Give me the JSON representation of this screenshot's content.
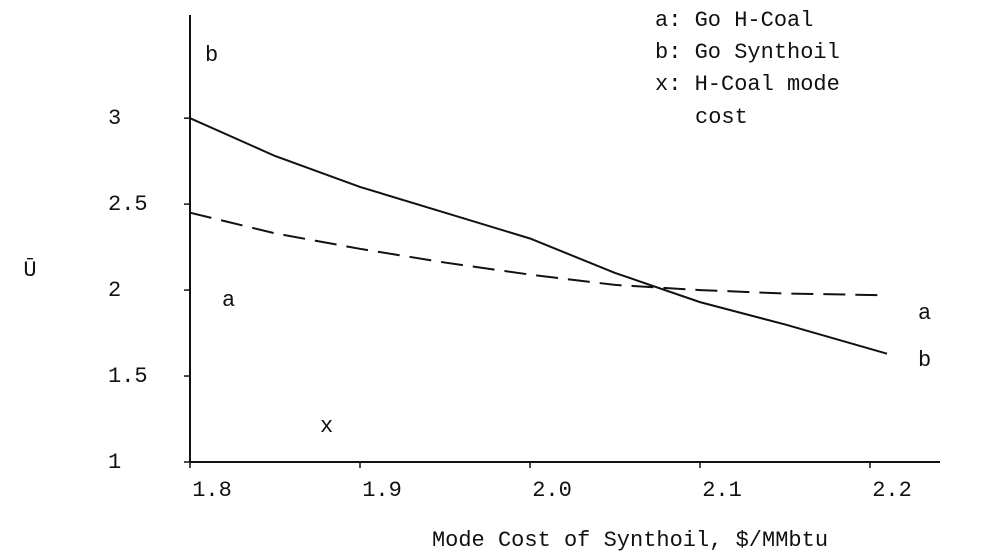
{
  "chart_data": {
    "type": "line",
    "x_label": "Mode Cost of Synthoil, $/MMbtu",
    "y_label": "Ū",
    "x": [
      1.8,
      1.85,
      1.9,
      1.95,
      2.0,
      2.05,
      2.1,
      2.15,
      2.21
    ],
    "series": [
      {
        "name": "a",
        "color": "#111111",
        "dashed": true,
        "values": [
          2.45,
          2.33,
          2.24,
          2.16,
          2.09,
          2.03,
          2.0,
          1.98,
          1.97
        ]
      },
      {
        "name": "b",
        "color": "#111111",
        "dashed": false,
        "values": [
          3.0,
          2.78,
          2.6,
          2.45,
          2.3,
          2.1,
          1.93,
          1.8,
          1.63
        ]
      }
    ],
    "xlim": [
      1.8,
      2.22
    ],
    "ylim": [
      1,
      3.6
    ],
    "xticks": [
      1.8,
      1.9,
      {
        "value": 2,
        "label": "2.0"
      },
      2.1,
      2.2
    ],
    "yticks": [
      1,
      1.5,
      2,
      2.5,
      3
    ],
    "legend": [
      "a: Go H-Coal",
      "b: Go Synthoil",
      "x: H-Coal mode",
      "cost"
    ],
    "annotations": [
      "b",
      "a",
      "x",
      "a",
      "b"
    ],
    "grid": false
  }
}
